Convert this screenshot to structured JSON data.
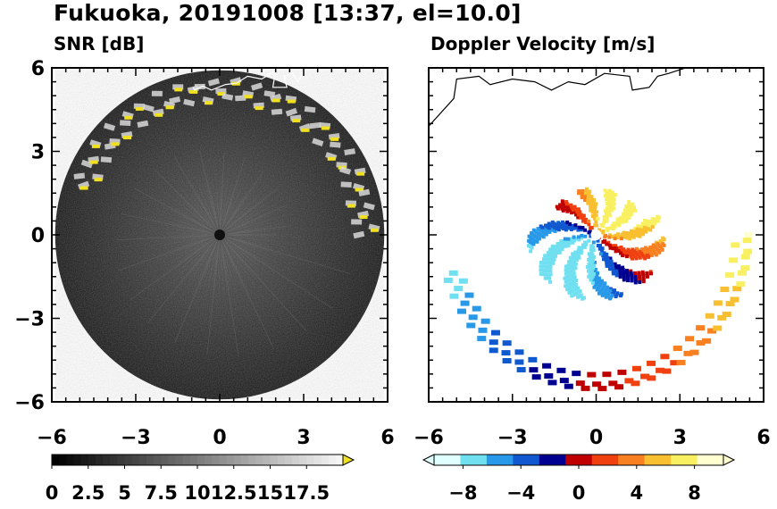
{
  "title": "Fukuoka, 20191008 [13:37, el=10.0]",
  "colors": {
    "frame": "#000000",
    "coast_left": "#ffffff",
    "coast_right": "#000000",
    "snr_echo": "#f0e020",
    "background": "#ffffff"
  },
  "chart_data": [
    {
      "type": "heatmap",
      "title": "SNR [dB]",
      "xlim": [
        -6,
        6
      ],
      "ylim": [
        -6,
        6
      ],
      "x_ticks": [
        "−6",
        "−3",
        "0",
        "3",
        "6"
      ],
      "y_ticks": [
        "6",
        "3",
        "0",
        "−3",
        "−6"
      ],
      "x_tick_values": [
        -6,
        -3,
        0,
        3,
        6
      ],
      "y_tick_values": [
        6,
        3,
        0,
        -3,
        -6
      ],
      "radar_range": 6,
      "colorbar": {
        "range": [
          0,
          20
        ],
        "ticks": [
          "0",
          "2.5",
          "5",
          "7.5",
          "10",
          "12.5",
          "15",
          "17.5"
        ],
        "tick_values": [
          0,
          2.5,
          5,
          7.5,
          10,
          12.5,
          15,
          17.5
        ],
        "extend": "max",
        "colormap": "gray",
        "over_color": "#f0e020"
      }
    },
    {
      "type": "heatmap",
      "title": "Doppler Velocity [m/s]",
      "xlim": [
        -6,
        6
      ],
      "ylim": [
        -6,
        6
      ],
      "x_ticks": [
        "−6",
        "−3",
        "0",
        "3",
        "6"
      ],
      "x_tick_values": [
        -6,
        -3,
        0,
        3,
        6
      ],
      "colorbar": {
        "range": [
          -10,
          10
        ],
        "ticks": [
          "−8",
          "−4",
          "0",
          "4",
          "8"
        ],
        "tick_values": [
          -8,
          -4,
          0,
          4,
          8
        ],
        "extend": "both",
        "colormap": "diverging",
        "stops": [
          "#e0ffff",
          "#70e0f0",
          "#2898e8",
          "#1058d0",
          "#000090",
          "#c00000",
          "#f04010",
          "#f88020",
          "#f8c030",
          "#f8f060",
          "#ffffd0"
        ]
      }
    }
  ]
}
